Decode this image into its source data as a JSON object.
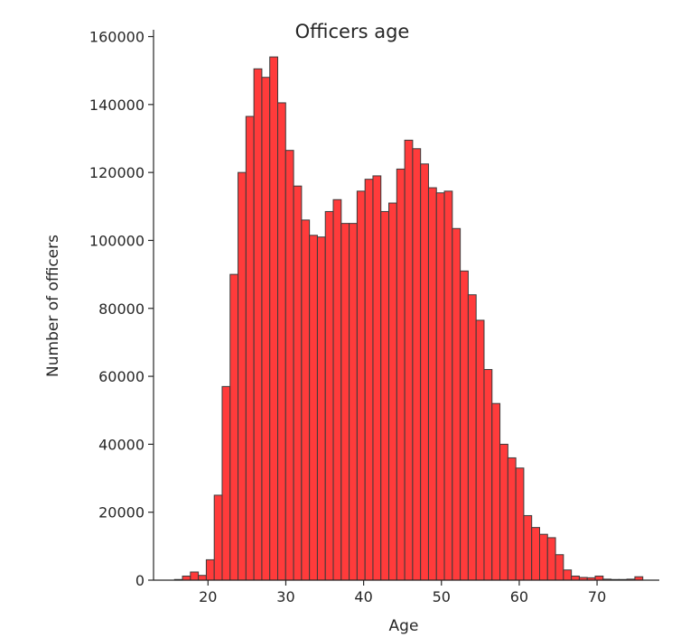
{
  "chart_data": {
    "type": "bar",
    "title": "Officers age",
    "xlabel": "Age",
    "ylabel": "Number of officers",
    "xlim": [
      13,
      78
    ],
    "ylim": [
      0,
      162000
    ],
    "xticks": [
      20,
      30,
      40,
      50,
      60,
      70
    ],
    "yticks": [
      0,
      20000,
      40000,
      60000,
      80000,
      100000,
      120000,
      140000,
      160000
    ],
    "grid": false,
    "bin_edges": [
      15.7,
      16.72,
      17.74,
      18.76,
      19.78,
      20.8,
      21.82,
      22.84,
      23.86,
      24.88,
      25.9,
      26.92,
      27.94,
      28.96,
      29.98,
      31.0,
      32.02,
      33.04,
      34.06,
      35.08,
      36.1,
      37.12,
      38.14,
      39.16,
      40.18,
      41.2,
      42.22,
      43.24,
      44.26,
      45.28,
      46.3,
      47.32,
      48.34,
      49.36,
      50.38,
      51.4,
      52.42,
      53.44,
      54.46,
      55.48,
      56.5,
      57.52,
      58.54,
      59.56,
      60.58,
      61.6,
      62.62,
      63.64,
      64.66,
      65.68,
      66.7,
      67.72,
      68.74,
      69.76,
      70.78,
      71.8,
      72.82,
      73.84,
      74.86,
      75.88
    ],
    "values": [
      200,
      1200,
      2400,
      1400,
      6000,
      25000,
      57000,
      90000,
      120000,
      136500,
      150500,
      148000,
      154000,
      140500,
      126500,
      116000,
      106000,
      101500,
      101000,
      108500,
      112000,
      105000,
      105000,
      114500,
      118000,
      119000,
      108500,
      111000,
      121000,
      129500,
      127000,
      122500,
      115500,
      114000,
      114500,
      103500,
      91000,
      84000,
      76500,
      62000,
      52000,
      40000,
      36000,
      33000,
      19000,
      15500,
      13500,
      12500,
      7500,
      3000,
      1200,
      800,
      700,
      1200,
      300,
      200,
      200,
      300,
      1000
    ],
    "bar_color": "#ff3b3b",
    "edge_color": "#3a3a3a"
  }
}
